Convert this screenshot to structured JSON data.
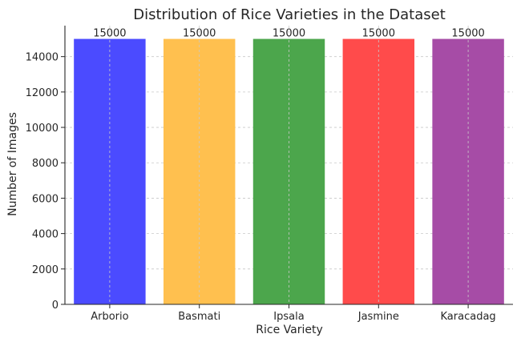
{
  "chart_data": {
    "type": "bar",
    "title": "Distribution of Rice Varieties in the Dataset",
    "xlabel": "Rice Variety",
    "ylabel": "Number of Images",
    "categories": [
      "Arborio",
      "Basmati",
      "Ipsala",
      "Jasmine",
      "Karacadag"
    ],
    "values": [
      15000,
      15000,
      15000,
      15000,
      15000
    ],
    "colors": [
      "#4b4bff",
      "#ffc04f",
      "#4ca64c",
      "#ff4b4b",
      "#a64ca6"
    ],
    "ylim": [
      0,
      15750
    ],
    "yticks": [
      0,
      2000,
      4000,
      6000,
      8000,
      10000,
      12000,
      14000
    ],
    "grid": true,
    "data_labels": [
      "15000",
      "15000",
      "15000",
      "15000",
      "15000"
    ]
  }
}
